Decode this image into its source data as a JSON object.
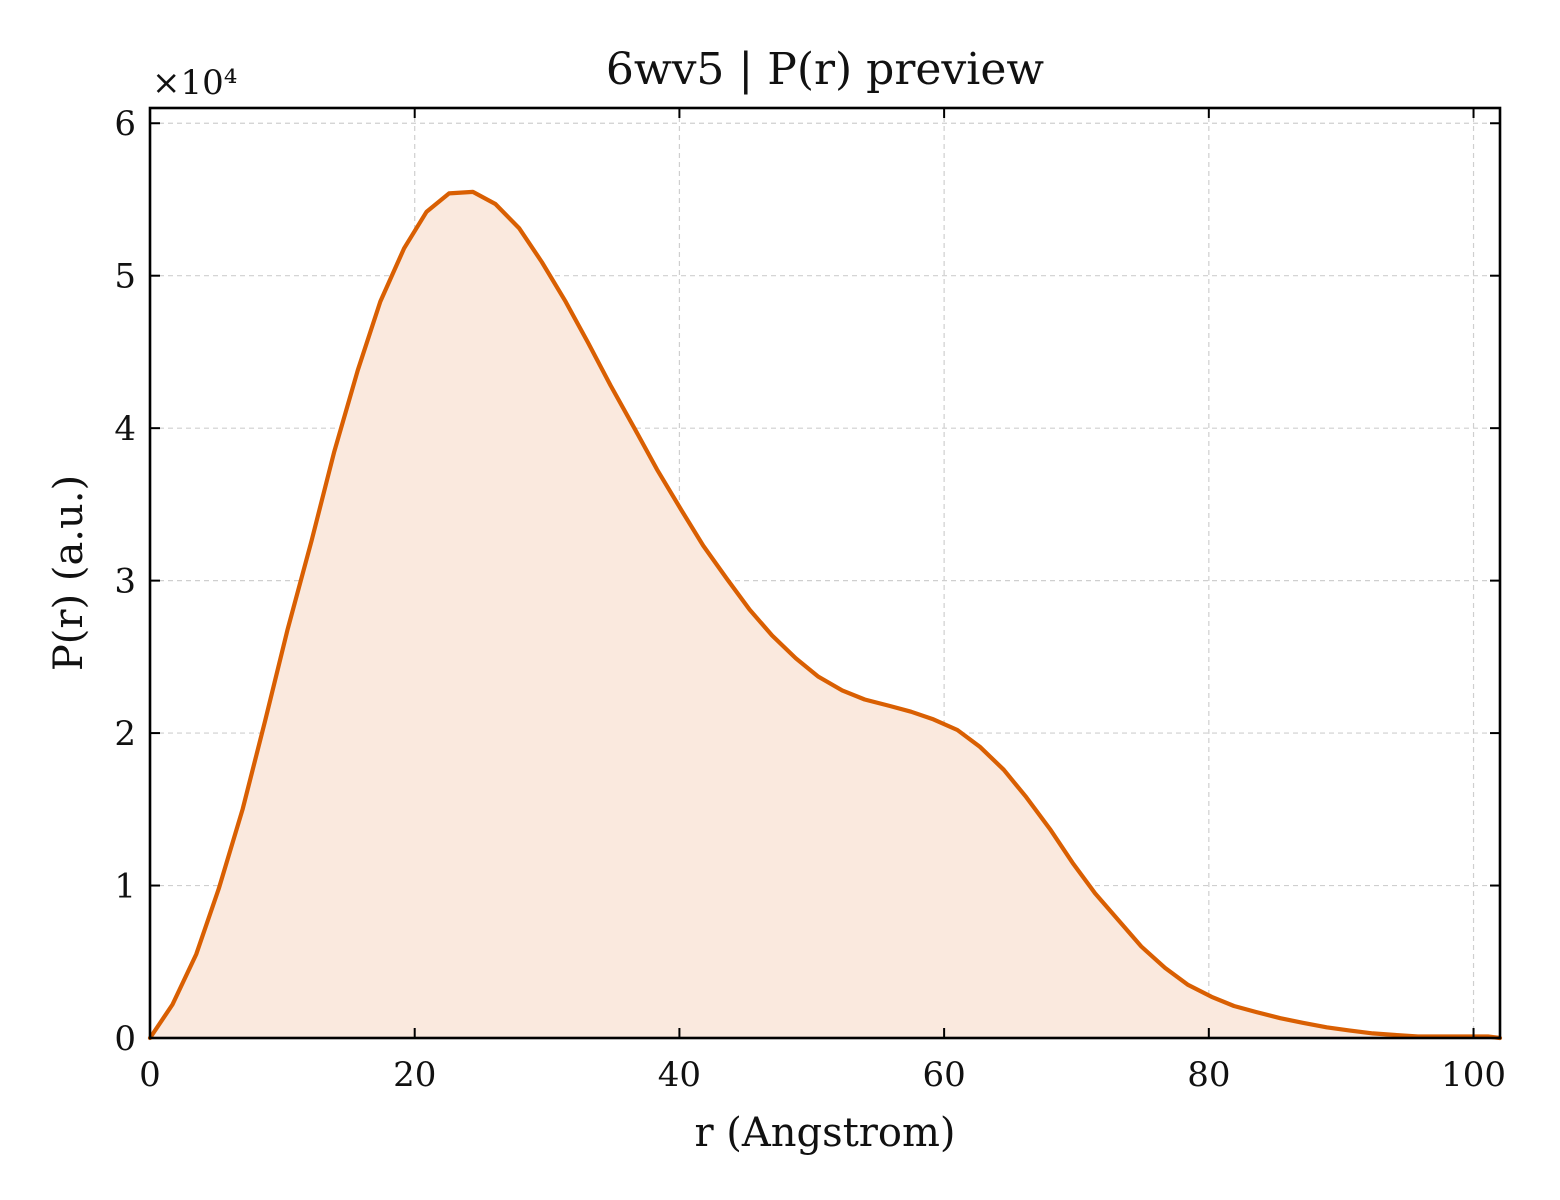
{
  "chart_data": {
    "type": "area",
    "title": "6wv5 | P(r) preview",
    "xlabel": "r (Angstrom)",
    "ylabel": "P(r) (a.u.)",
    "y_multiplier_label": "×10⁴",
    "y_multiplier": 10000,
    "xlim": [
      0,
      102
    ],
    "ylim": [
      0,
      61000
    ],
    "x_ticks": [
      0,
      20,
      40,
      60,
      80,
      100
    ],
    "y_ticks": [
      0,
      10000,
      20000,
      30000,
      40000,
      50000,
      60000
    ],
    "y_tick_labels": [
      "0",
      "1",
      "2",
      "3",
      "4",
      "5",
      "6"
    ],
    "x_tick_labels": [
      "0",
      "20",
      "40",
      "60",
      "80",
      "100"
    ],
    "grid": true,
    "colors": {
      "line": "#d95f02",
      "fill": "#fae9de"
    },
    "series": [
      {
        "x": [
          0,
          1.7,
          3.5,
          5.2,
          7.0,
          8.7,
          10.4,
          12.2,
          13.9,
          15.7,
          17.4,
          19.2,
          20.9,
          22.6,
          24.4,
          26.1,
          27.9,
          29.6,
          31.4,
          33.1,
          34.8,
          36.6,
          38.3,
          40.1,
          41.8,
          43.6,
          45.3,
          47.0,
          48.8,
          50.5,
          52.3,
          54.0,
          55.8,
          57.5,
          59.2,
          61.0,
          62.7,
          64.5,
          66.2,
          68.0,
          69.7,
          71.4,
          73.2,
          74.9,
          76.7,
          78.4,
          80.2,
          81.9,
          83.6,
          85.4,
          87.1,
          88.9,
          90.6,
          92.4,
          94.1,
          95.8,
          97.6,
          99.3,
          101.1,
          102
        ],
        "y": [
          0,
          2200,
          5500,
          9800,
          15000,
          20800,
          26800,
          32600,
          38400,
          43800,
          48300,
          51800,
          54200,
          55400,
          55500,
          54700,
          53100,
          50900,
          48300,
          45600,
          42800,
          40000,
          37300,
          34700,
          32300,
          30100,
          28100,
          26400,
          24900,
          23700,
          22800,
          22200,
          21800,
          21400,
          20900,
          20200,
          19100,
          17600,
          15800,
          13700,
          11500,
          9500,
          7700,
          6000,
          4600,
          3500,
          2700,
          2100,
          1700,
          1300,
          1000,
          700,
          500,
          300,
          200,
          100,
          100,
          100,
          100,
          0
        ]
      }
    ]
  }
}
